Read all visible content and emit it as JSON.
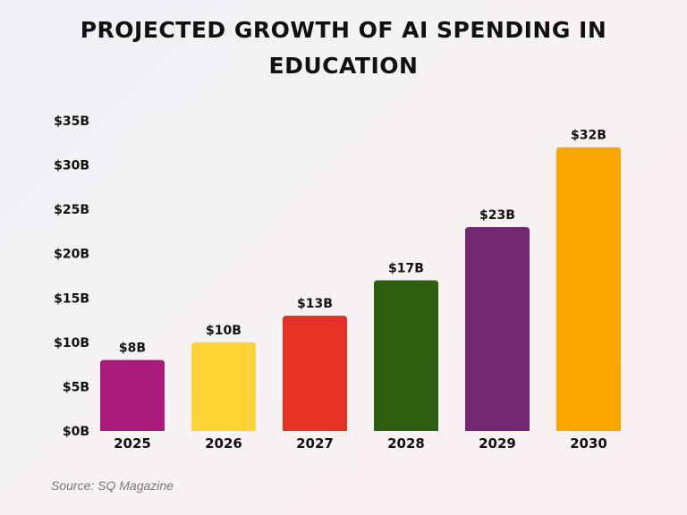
{
  "chart_data": {
    "type": "bar",
    "title_lines": [
      "PROJECTED GROWTH OF AI SPENDING IN",
      "EDUCATION"
    ],
    "categories": [
      "2025",
      "2026",
      "2027",
      "2028",
      "2029",
      "2030"
    ],
    "values": [
      8,
      10,
      13,
      17,
      23,
      32
    ],
    "data_labels": [
      "$8B",
      "$10B",
      "$13B",
      "$17B",
      "$23B",
      "$32B"
    ],
    "colors": [
      "#AA1A7A",
      "#FDD335",
      "#E63224",
      "#2E5E10",
      "#722870",
      "#F9A602"
    ],
    "yticks": [
      0,
      5,
      10,
      15,
      20,
      25,
      30,
      35
    ],
    "ytick_labels": [
      "$0B",
      "$5B",
      "$10B",
      "$15B",
      "$20B",
      "$25B",
      "$30B",
      "$35B"
    ],
    "ylim": [
      0,
      35
    ],
    "grid": false,
    "xlabel": "",
    "ylabel": ""
  },
  "source": "Source: SQ Magazine"
}
